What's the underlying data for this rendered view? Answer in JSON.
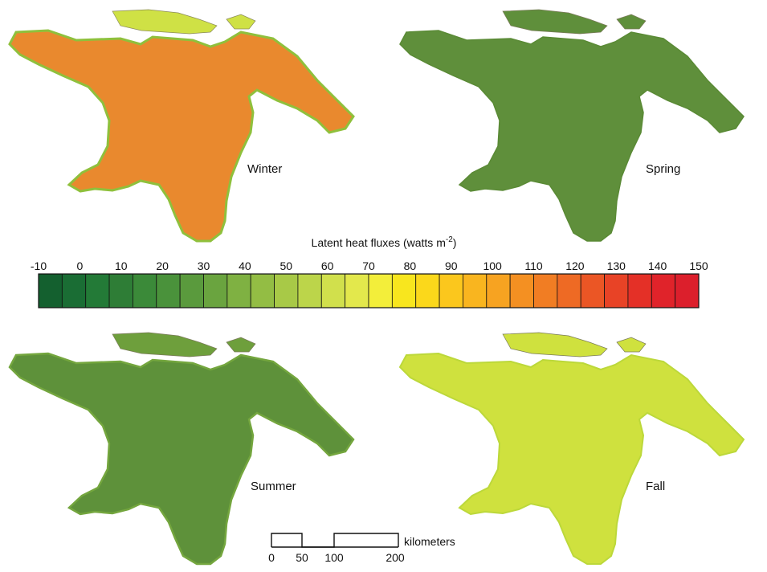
{
  "panels": [
    {
      "id": "winter",
      "label": "Winter",
      "color": "#e9892e",
      "edge": "#8fc03c"
    },
    {
      "id": "spring",
      "label": "Spring",
      "color": "#5f8f3b",
      "edge": "#5a8a35"
    },
    {
      "id": "summer",
      "label": "Summer",
      "color": "#5e913a",
      "edge": "#74a63e"
    },
    {
      "id": "fall",
      "label": "Fall",
      "color": "#cfe13e",
      "edge": "#bcd83a"
    }
  ],
  "colorbar": {
    "title_main": "Latent heat fluxes (watts m",
    "title_sup": "-2",
    "title_end": ")",
    "tick_labels": [
      "-10",
      "0",
      "10",
      "20",
      "30",
      "40",
      "50",
      "60",
      "70",
      "80",
      "90",
      "100",
      "110",
      "120",
      "130",
      "140",
      "150"
    ],
    "colors": [
      "#14602f",
      "#1a6d34",
      "#237a37",
      "#2e7d36",
      "#3b8a39",
      "#4a923b",
      "#5a9a3d",
      "#6aa43f",
      "#7fb142",
      "#93bd44",
      "#a8c947",
      "#bcd54a",
      "#d1e04c",
      "#e3e84c",
      "#f3ee3a",
      "#f8e61e",
      "#fbd81b",
      "#fbc71d",
      "#f9b51f",
      "#f7a321",
      "#f49022",
      "#f17d23",
      "#ee6a24",
      "#eb5625",
      "#e84326",
      "#e43027",
      "#e0232a",
      "#dc1f2c"
    ]
  },
  "scalebar": {
    "unit": "kilometers",
    "ticks": [
      "0",
      "50",
      "100",
      "200"
    ]
  }
}
